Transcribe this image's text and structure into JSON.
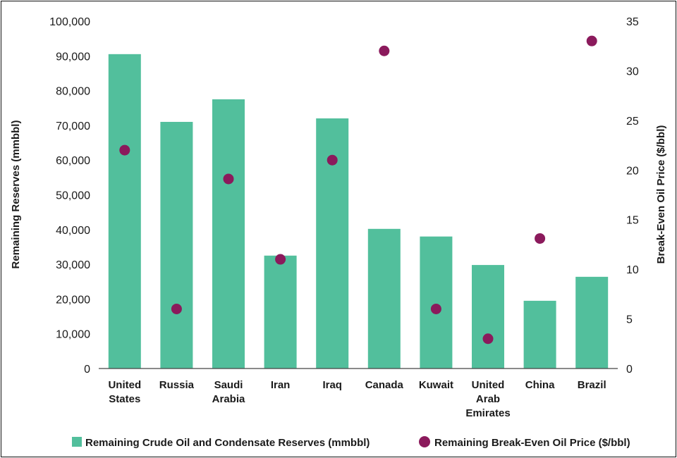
{
  "chart_data": {
    "type": "bar",
    "categories": [
      [
        "United",
        "States"
      ],
      [
        "Russia"
      ],
      [
        "Saudi",
        "Arabia"
      ],
      [
        "Iran"
      ],
      [
        "Iraq"
      ],
      [
        "Canada"
      ],
      [
        "Kuwait"
      ],
      [
        "United",
        "Arab",
        "Emirates"
      ],
      [
        "China"
      ],
      [
        "Brazil"
      ]
    ],
    "series": [
      {
        "name": "Remaining Crude Oil and Condensate Reserves (mmbbl)",
        "type": "bar",
        "axis": "left",
        "color": "#52bf9c",
        "values": [
          90500,
          71000,
          77500,
          32500,
          72000,
          40200,
          38000,
          29800,
          19500,
          26400
        ]
      },
      {
        "name": "Remaining Break-Even Oil Price ($/bbl)",
        "type": "scatter",
        "axis": "right",
        "color": "#8b1a5c",
        "values": [
          22,
          6,
          19.1,
          11,
          21,
          32,
          6,
          3,
          13.1,
          33
        ]
      }
    ],
    "ylabel": "Remaining Reserves (mmbbl)",
    "y2label": "Break-Even Oil Price ($/bbl)",
    "ylim": [
      0,
      100000
    ],
    "y2lim": [
      0,
      35
    ],
    "yticks": [
      "0",
      "10,000",
      "20,000",
      "30,000",
      "40,000",
      "50,000",
      "60,000",
      "70,000",
      "80,000",
      "90,000",
      "100,000"
    ],
    "y2ticks": [
      "0",
      "5",
      "10",
      "15",
      "20",
      "25",
      "30",
      "35"
    ],
    "legend": "bottom",
    "grid": false
  }
}
